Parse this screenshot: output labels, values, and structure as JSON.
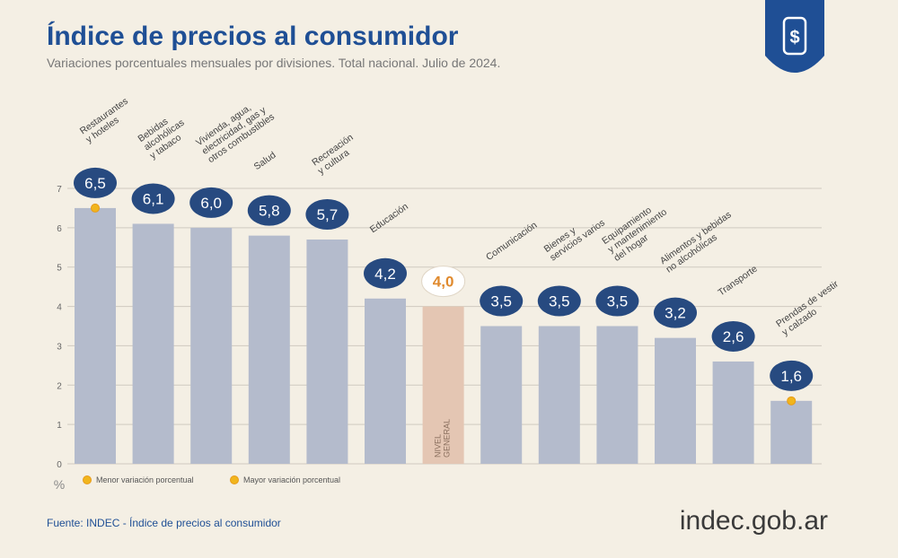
{
  "chart_data": {
    "type": "bar",
    "title": "Índice de precios al consumidor",
    "subtitle": "Variaciones porcentuales mensuales por divisiones. Total nacional. Julio de 2024.",
    "categories": [
      "Restaurantes\ny hoteles",
      "Bebidas\nalcohólicas\ny tabaco",
      "Vivienda, agua,\nelectricidad, gas y\notros combustibles",
      "Salud",
      "Recreación\ny cultura",
      "Educación",
      "NIVEL\nGENERAL",
      "Comunicación",
      "Bienes y\nservicios varios",
      "Equipamiento\ny mantenimiento\ndel hogar",
      "Alimentos y bebidas\nno alcohólicas",
      "Transporte",
      "Prendas de vestir\ny calzado"
    ],
    "values": [
      6.5,
      6.1,
      6.0,
      5.8,
      5.7,
      4.2,
      4.0,
      3.5,
      3.5,
      3.5,
      3.2,
      2.6,
      1.6
    ],
    "value_labels": [
      "6,5",
      "6,1",
      "6,0",
      "5,8",
      "5,7",
      "4,2",
      "4,0",
      "3,5",
      "3,5",
      "3,5",
      "3,2",
      "2,6",
      "1,6"
    ],
    "color": "#b4bbcc",
    "highlight_index": 6,
    "highlight_color": "#e4c6b3",
    "ylim": [
      0,
      7
    ],
    "yticks": [
      0,
      1,
      2,
      3,
      4,
      5,
      6,
      7
    ],
    "grid": true,
    "y_unit": "%",
    "legend": [
      "Menor variación porcentual",
      "Mayor variación porcentual"
    ],
    "min_index": 12,
    "max_index": 0,
    "source": "Fuente: INDEC - Índice de precios al consumidor",
    "brand": "indec.gob.ar"
  }
}
